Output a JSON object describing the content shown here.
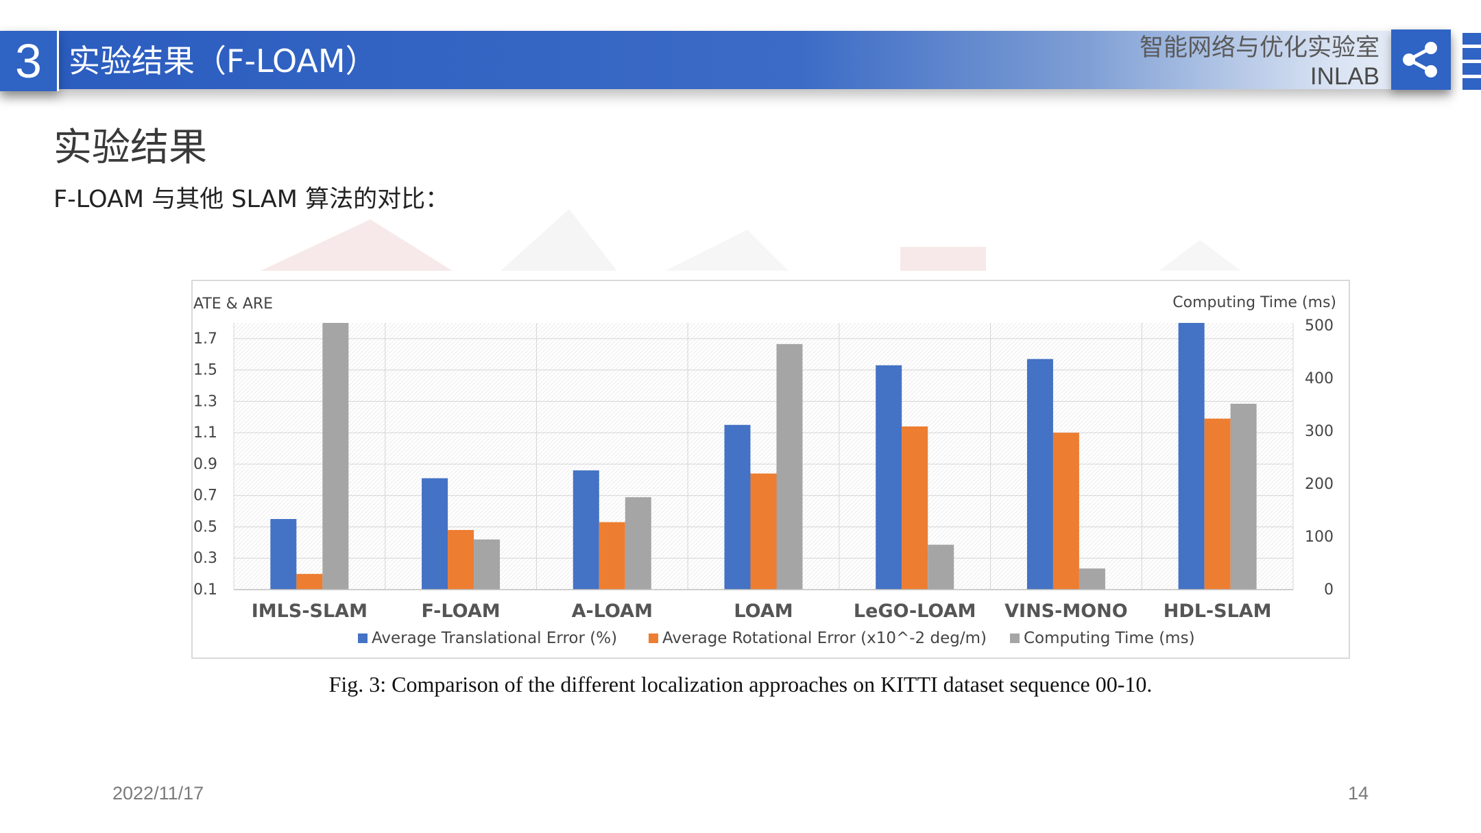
{
  "header": {
    "section_number": "3",
    "title": "实验结果（F-LOAM）",
    "lab_name": "智能网络与优化实验室",
    "lab_code": "INLAB"
  },
  "slide": {
    "title": "实验结果",
    "subtitle": "F-LOAM 与其他 SLAM 算法的对比："
  },
  "chart_data": {
    "type": "bar",
    "left_axis_label": "ATE & ARE",
    "right_axis_label": "Computing Time (ms)",
    "categories": [
      "IMLS-SLAM",
      "F-LOAM",
      "A-LOAM",
      "LOAM",
      "LeGO-LOAM",
      "VINS-MONO",
      "HDL-SLAM"
    ],
    "left_ticks": [
      "1.7",
      "1.5",
      "1.3",
      "1.1",
      "0.9",
      "0.7",
      "0.5",
      "0.3",
      "0.1"
    ],
    "right_ticks": [
      "500",
      "400",
      "300",
      "200",
      "100",
      "0"
    ],
    "ylim_left": [
      0.1,
      1.8
    ],
    "ylim_right": [
      0,
      505
    ],
    "series": [
      {
        "name": "Average Translational Error (%)",
        "axis": "left",
        "color": "#4472c4",
        "values": [
          0.55,
          0.81,
          0.86,
          1.15,
          1.53,
          1.57,
          1.8
        ]
      },
      {
        "name": "Average Rotational Error (x10^-2 deg/m)",
        "axis": "left",
        "color": "#ed7d31",
        "values": [
          0.2,
          0.48,
          0.53,
          0.84,
          1.14,
          1.1,
          1.19
        ]
      },
      {
        "name": "Computing Time (ms)",
        "axis": "right",
        "color": "#a5a5a5",
        "values": [
          505,
          95,
          175,
          465,
          85,
          40,
          352
        ]
      }
    ],
    "legend_position": "bottom",
    "grid": true,
    "caption": "Fig. 3: Comparison of the different localization approaches on KITTI dataset sequence 00-10."
  },
  "footer": {
    "date": "2022/11/17",
    "page": "14"
  }
}
